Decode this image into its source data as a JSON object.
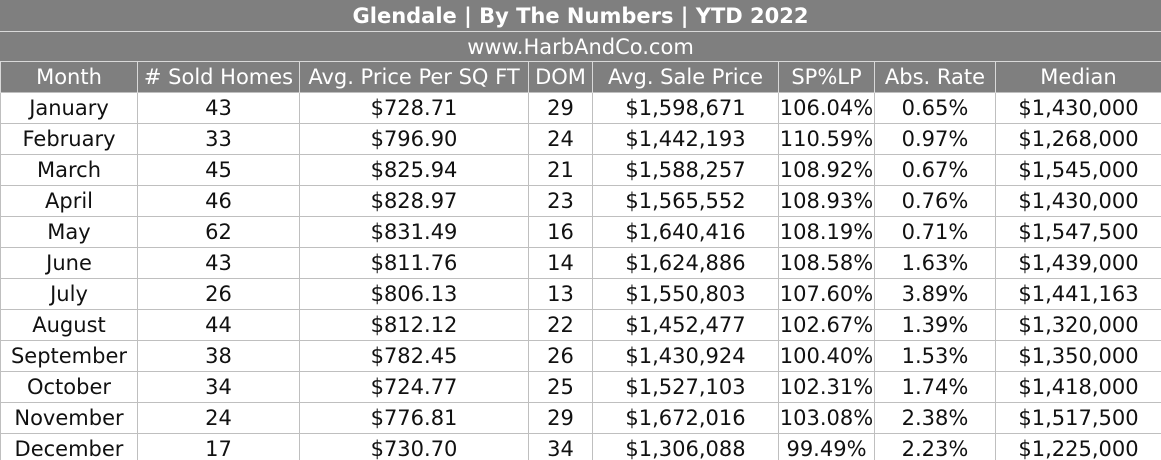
{
  "header": {
    "title": "Glendale  |  By The Numbers  |  YTD 2022",
    "url": "www.HarbAndCo.com"
  },
  "table": {
    "columns": [
      "Month",
      "# Sold Homes",
      "Avg. Price Per SQ FT",
      "DOM",
      "Avg. Sale Price",
      "SP%LP",
      "Abs. Rate",
      "Median"
    ],
    "rows": [
      [
        "January",
        "43",
        "$728.71",
        "29",
        "$1,598,671",
        "106.04%",
        "0.65%",
        "$1,430,000"
      ],
      [
        "February",
        "33",
        "$796.90",
        "24",
        "$1,442,193",
        "110.59%",
        "0.97%",
        "$1,268,000"
      ],
      [
        "March",
        "45",
        "$825.94",
        "21",
        "$1,588,257",
        "108.92%",
        "0.67%",
        "$1,545,000"
      ],
      [
        "April",
        "46",
        "$828.97",
        "23",
        "$1,565,552",
        "108.93%",
        "0.76%",
        "$1,430,000"
      ],
      [
        "May",
        "62",
        "$831.49",
        "16",
        "$1,640,416",
        "108.19%",
        "0.71%",
        "$1,547,500"
      ],
      [
        "June",
        "43",
        "$811.76",
        "14",
        "$1,624,886",
        "108.58%",
        "1.63%",
        "$1,439,000"
      ],
      [
        "July",
        "26",
        "$806.13",
        "13",
        "$1,550,803",
        "107.60%",
        "3.89%",
        "$1,441,163"
      ],
      [
        "August",
        "44",
        "$812.12",
        "22",
        "$1,452,477",
        "102.67%",
        "1.39%",
        "$1,320,000"
      ],
      [
        "September",
        "38",
        "$782.45",
        "26",
        "$1,430,924",
        "100.40%",
        "1.53%",
        "$1,350,000"
      ],
      [
        "October",
        "34",
        "$724.77",
        "25",
        "$1,527,103",
        "102.31%",
        "1.74%",
        "$1,418,000"
      ],
      [
        "November",
        "24",
        "$776.81",
        "29",
        "$1,672,016",
        "103.08%",
        "2.38%",
        "$1,517,500"
      ],
      [
        "December",
        "17",
        "$730.70",
        "34",
        "$1,306,088",
        "99.49%",
        "2.23%",
        "$1,225,000"
      ]
    ]
  },
  "colors": {
    "header_bg": "#7f7f7f",
    "header_text": "#ffffff",
    "grid_line": "#bfbfbf",
    "cell_text": "#111111"
  }
}
